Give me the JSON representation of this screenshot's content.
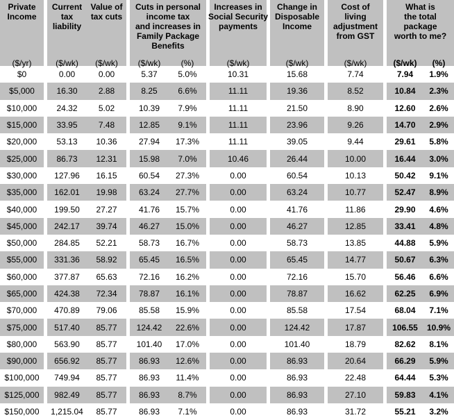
{
  "colors": {
    "band_gray": "#c0c0c0",
    "row_white": "#ffffff",
    "text": "#000000"
  },
  "header": {
    "private_income": {
      "title": "Private\nIncome",
      "unit": "($/yr)"
    },
    "current_tax_liability": {
      "title": "Current\ntax\nliability",
      "unit": "($/wk)"
    },
    "value_of_tax_cuts": {
      "title": "Value of\ntax cuts",
      "unit": "($/wk)"
    },
    "cuts_income_tax": {
      "title": "Cuts in personal\nincome tax\nand increases in\nFamily Package\nBenefits",
      "unit_wk": "($/wk)",
      "unit_pct": "(%)"
    },
    "social_security": {
      "title": "Increases in\nSocial Security\npayments",
      "unit": "($/wk)"
    },
    "disposable_income": {
      "title": "Change in\nDisposable\nIncome",
      "unit": "($/wk)"
    },
    "gst_adjustment": {
      "title": "Cost of\nliving\nadjustment\nfrom GST",
      "unit": "($/wk)"
    },
    "total_package": {
      "title": "What is\nthe total\npackage\nworth to me?",
      "unit_wk": "($/wk)",
      "unit_pct": "(%)"
    }
  },
  "cell_names": [
    "cell-private-income",
    "cell-current-tax-liability",
    "cell-value-of-tax-cuts",
    "cell-cuts-income-tax-wk",
    "cell-cuts-income-tax-pct",
    "cell-social-security-increase",
    "cell-change-disposable-income",
    "cell-gst-cost-of-living",
    "cell-total-package-wk",
    "cell-total-package-pct"
  ],
  "chart_data": {
    "type": "table",
    "columns": [
      "Private Income ($/yr)",
      "Current tax liability ($/wk)",
      "Value of tax cuts ($/wk)",
      "Cuts in personal income tax and increases in Family Package Benefits ($/wk)",
      "Cuts in personal income tax and increases in Family Package Benefits (%)",
      "Increases in Social Security payments ($/wk)",
      "Change in Disposable Income ($/wk)",
      "Cost of living adjustment from GST ($/wk)",
      "What is the total package worth to me? ($/wk)",
      "What is the total package worth to me? (%)"
    ],
    "rows": [
      [
        "$0",
        "0.00",
        "0.00",
        "5.37",
        "5.0%",
        "10.31",
        "15.68",
        "7.74",
        "7.94",
        "1.9%"
      ],
      [
        "$5,000",
        "16.30",
        "2.88",
        "8.25",
        "6.6%",
        "11.11",
        "19.36",
        "8.52",
        "10.84",
        "2.3%"
      ],
      [
        "$10,000",
        "24.32",
        "5.02",
        "10.39",
        "7.9%",
        "11.11",
        "21.50",
        "8.90",
        "12.60",
        "2.6%"
      ],
      [
        "$15,000",
        "33.95",
        "7.48",
        "12.85",
        "9.1%",
        "11.11",
        "23.96",
        "9.26",
        "14.70",
        "2.9%"
      ],
      [
        "$20,000",
        "53.13",
        "10.36",
        "27.94",
        "17.3%",
        "11.11",
        "39.05",
        "9.44",
        "29.61",
        "5.8%"
      ],
      [
        "$25,000",
        "86.73",
        "12.31",
        "15.98",
        "7.0%",
        "10.46",
        "26.44",
        "10.00",
        "16.44",
        "3.0%"
      ],
      [
        "$30,000",
        "127.96",
        "16.15",
        "60.54",
        "27.3%",
        "0.00",
        "60.54",
        "10.13",
        "50.42",
        "9.1%"
      ],
      [
        "$35,000",
        "162.01",
        "19.98",
        "63.24",
        "27.7%",
        "0.00",
        "63.24",
        "10.77",
        "52.47",
        "8.9%"
      ],
      [
        "$40,000",
        "199.50",
        "27.27",
        "41.76",
        "15.7%",
        "0.00",
        "41.76",
        "11.86",
        "29.90",
        "4.6%"
      ],
      [
        "$45,000",
        "242.17",
        "39.74",
        "46.27",
        "15.0%",
        "0.00",
        "46.27",
        "12.85",
        "33.41",
        "4.8%"
      ],
      [
        "$50,000",
        "284.85",
        "52.21",
        "58.73",
        "16.7%",
        "0.00",
        "58.73",
        "13.85",
        "44.88",
        "5.9%"
      ],
      [
        "$55,000",
        "331.36",
        "58.92",
        "65.45",
        "16.5%",
        "0.00",
        "65.45",
        "14.77",
        "50.67",
        "6.3%"
      ],
      [
        "$60,000",
        "377.87",
        "65.63",
        "72.16",
        "16.2%",
        "0.00",
        "72.16",
        "15.70",
        "56.46",
        "6.6%"
      ],
      [
        "$65,000",
        "424.38",
        "72.34",
        "78.87",
        "16.1%",
        "0.00",
        "78.87",
        "16.62",
        "62.25",
        "6.9%"
      ],
      [
        "$70,000",
        "470.89",
        "79.06",
        "85.58",
        "15.9%",
        "0.00",
        "85.58",
        "17.54",
        "68.04",
        "7.1%"
      ],
      [
        "$75,000",
        "517.40",
        "85.77",
        "124.42",
        "22.6%",
        "0.00",
        "124.42",
        "17.87",
        "106.55",
        "10.9%"
      ],
      [
        "$80,000",
        "563.90",
        "85.77",
        "101.40",
        "17.0%",
        "0.00",
        "101.40",
        "18.79",
        "82.62",
        "8.1%"
      ],
      [
        "$90,000",
        "656.92",
        "85.77",
        "86.93",
        "12.6%",
        "0.00",
        "86.93",
        "20.64",
        "66.29",
        "5.9%"
      ],
      [
        "$100,000",
        "749.94",
        "85.77",
        "86.93",
        "11.4%",
        "0.00",
        "86.93",
        "22.48",
        "64.44",
        "5.3%"
      ],
      [
        "$125,000",
        "982.49",
        "85.77",
        "86.93",
        "8.7%",
        "0.00",
        "86.93",
        "27.10",
        "59.83",
        "4.1%"
      ],
      [
        "$150,000",
        "1,215.04",
        "85.77",
        "86.93",
        "7.1%",
        "0.00",
        "86.93",
        "31.72",
        "55.21",
        "3.2%"
      ]
    ]
  }
}
